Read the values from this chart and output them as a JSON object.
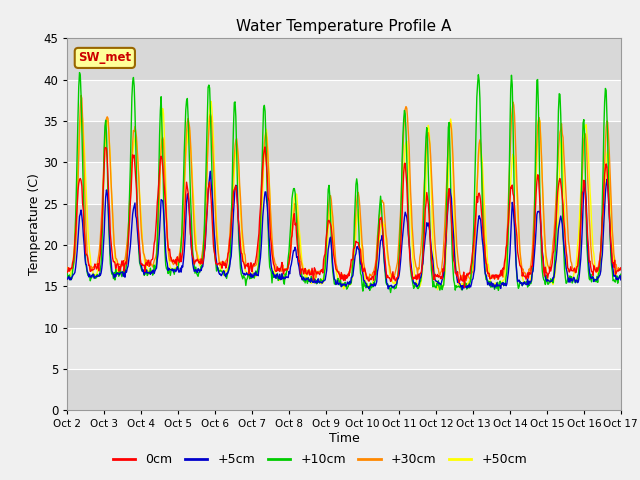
{
  "title": "Water Temperature Profile A",
  "xlabel": "Time",
  "ylabel": "Temperature (C)",
  "ylim": [
    0,
    45
  ],
  "yticks": [
    0,
    5,
    10,
    15,
    20,
    25,
    30,
    35,
    40,
    45
  ],
  "series_colors": [
    "#ff0000",
    "#0000cc",
    "#00cc00",
    "#ff8800",
    "#ffff00"
  ],
  "series_labels": [
    "0cm",
    "+5cm",
    "+10cm",
    "+30cm",
    "+50cm"
  ],
  "annotation_text": "SW_met",
  "annotation_bg": "#ffff99",
  "annotation_border": "#996600",
  "annotation_text_color": "#cc0000",
  "fig_bg": "#f0f0f0",
  "plot_bg": "#e8e8e8",
  "band_colors": [
    "#d8d8d8",
    "#e8e8e8"
  ],
  "n_points": 720,
  "x_start": 2,
  "x_end": 17,
  "xtick_labels": [
    "Oct 2",
    "Oct 3",
    "Oct 4",
    "Oct 5",
    "Oct 6",
    "Oct 7",
    "Oct 8",
    "Oct 9",
    "Oct 10",
    "Oct 11",
    "Oct 12",
    "Oct 13",
    "Oct 14",
    "Oct 15",
    "Oct 16",
    "Oct 17"
  ],
  "xtick_positions": [
    2,
    3,
    4,
    5,
    6,
    7,
    8,
    9,
    10,
    11,
    12,
    13,
    14,
    15,
    16,
    17
  ]
}
